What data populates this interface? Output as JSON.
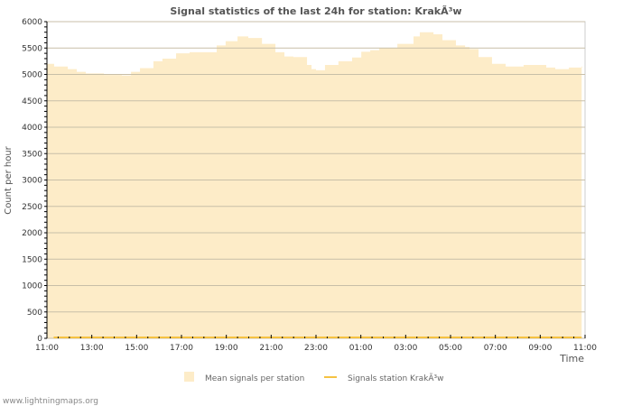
{
  "chart_data": {
    "type": "area",
    "title": "Signal statistics of the last 24h for station: KrakÃ³w",
    "xlabel": "Time",
    "ylabel": "Count per hour",
    "ylim": [
      0,
      6000
    ],
    "yticks": [
      "0",
      "500",
      "1000",
      "1500",
      "2000",
      "2500",
      "3000",
      "3500",
      "4000",
      "4500",
      "5000",
      "5500",
      "6000"
    ],
    "xlim_hours": [
      0,
      24
    ],
    "xticks": [
      "11:00",
      "13:00",
      "15:00",
      "17:00",
      "19:00",
      "21:00",
      "23:00",
      "01:00",
      "03:00",
      "05:00",
      "07:00",
      "09:00",
      "11:00"
    ],
    "grid": true,
    "legend_position": "bottom",
    "series": [
      {
        "name": "Mean signals per station",
        "color": "#fdecc8",
        "x_hours": [
          0,
          0.32,
          0.93,
          1.33,
          1.73,
          2.54,
          3.34,
          3.75,
          4.15,
          4.75,
          5.15,
          5.76,
          6.36,
          6.97,
          7.57,
          7.97,
          8.5,
          8.98,
          9.59,
          10.19,
          10.59,
          10.99,
          11.6,
          11.8,
          12.0,
          12.4,
          13.0,
          13.61,
          14.02,
          14.42,
          14.82,
          15.63,
          16.35,
          16.63,
          17.24,
          17.64,
          18.24,
          18.65,
          18.85,
          19.25,
          19.85,
          20.46,
          21.26,
          21.87,
          22.27,
          22.67,
          23.28,
          23.88
        ],
        "values": [
          5200,
          5150,
          5100,
          5050,
          5020,
          4990,
          4980,
          5050,
          5120,
          5250,
          5300,
          5400,
          5420,
          5420,
          5550,
          5630,
          5720,
          5690,
          5580,
          5420,
          5340,
          5330,
          5180,
          5100,
          5080,
          5180,
          5250,
          5320,
          5430,
          5460,
          5500,
          5580,
          5720,
          5800,
          5760,
          5650,
          5550,
          5520,
          5480,
          5330,
          5200,
          5150,
          5180,
          5180,
          5130,
          5100,
          5130,
          5150
        ]
      },
      {
        "name": "Signals station KrakÃ³w",
        "color": "#f5c242",
        "constant_value": 0
      }
    ]
  },
  "footer": "www.lightningmaps.org"
}
